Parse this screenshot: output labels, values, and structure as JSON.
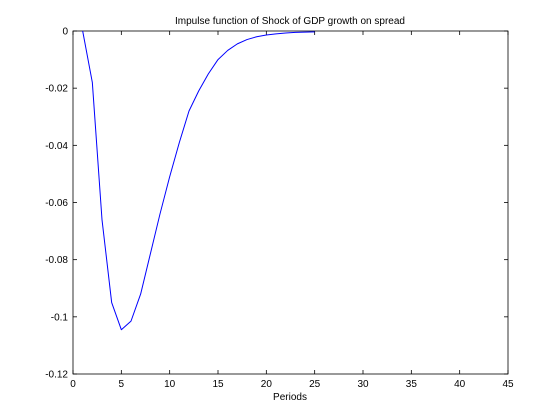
{
  "chart_data": {
    "type": "line",
    "title": "Impulse function of Shock of GDP growth on spread",
    "xlabel": "Periods",
    "ylabel": "",
    "xlim": [
      0,
      45
    ],
    "ylim": [
      -0.12,
      0
    ],
    "x_ticks": [
      0,
      5,
      10,
      15,
      20,
      25,
      30,
      35,
      40,
      45
    ],
    "x_tick_labels": [
      "0",
      "5",
      "10",
      "15",
      "20",
      "25",
      "30",
      "35",
      "40",
      "45"
    ],
    "y_ticks": [
      0,
      -0.02,
      -0.04,
      -0.06,
      -0.08,
      -0.1,
      -0.12
    ],
    "y_tick_labels": [
      "0",
      "-0.02",
      "-0.04",
      "-0.06",
      "-0.08",
      "-0.1",
      "-0.12"
    ],
    "grid": false,
    "series": [
      {
        "color": "#0000ff",
        "x": [
          1,
          2,
          3,
          4,
          5,
          6,
          7,
          8,
          9,
          10,
          11,
          12,
          13,
          14,
          15,
          16,
          17,
          18,
          19,
          20,
          21,
          22,
          23,
          24,
          25
        ],
        "values": [
          0,
          -0.018,
          -0.066,
          -0.095,
          -0.1045,
          -0.1015,
          -0.092,
          -0.078,
          -0.064,
          -0.051,
          -0.039,
          -0.028,
          -0.021,
          -0.015,
          -0.01,
          -0.0068,
          -0.0045,
          -0.003,
          -0.002,
          -0.0014,
          -0.001,
          -0.0007,
          -0.0005,
          -0.0004,
          -0.0003
        ]
      }
    ]
  }
}
